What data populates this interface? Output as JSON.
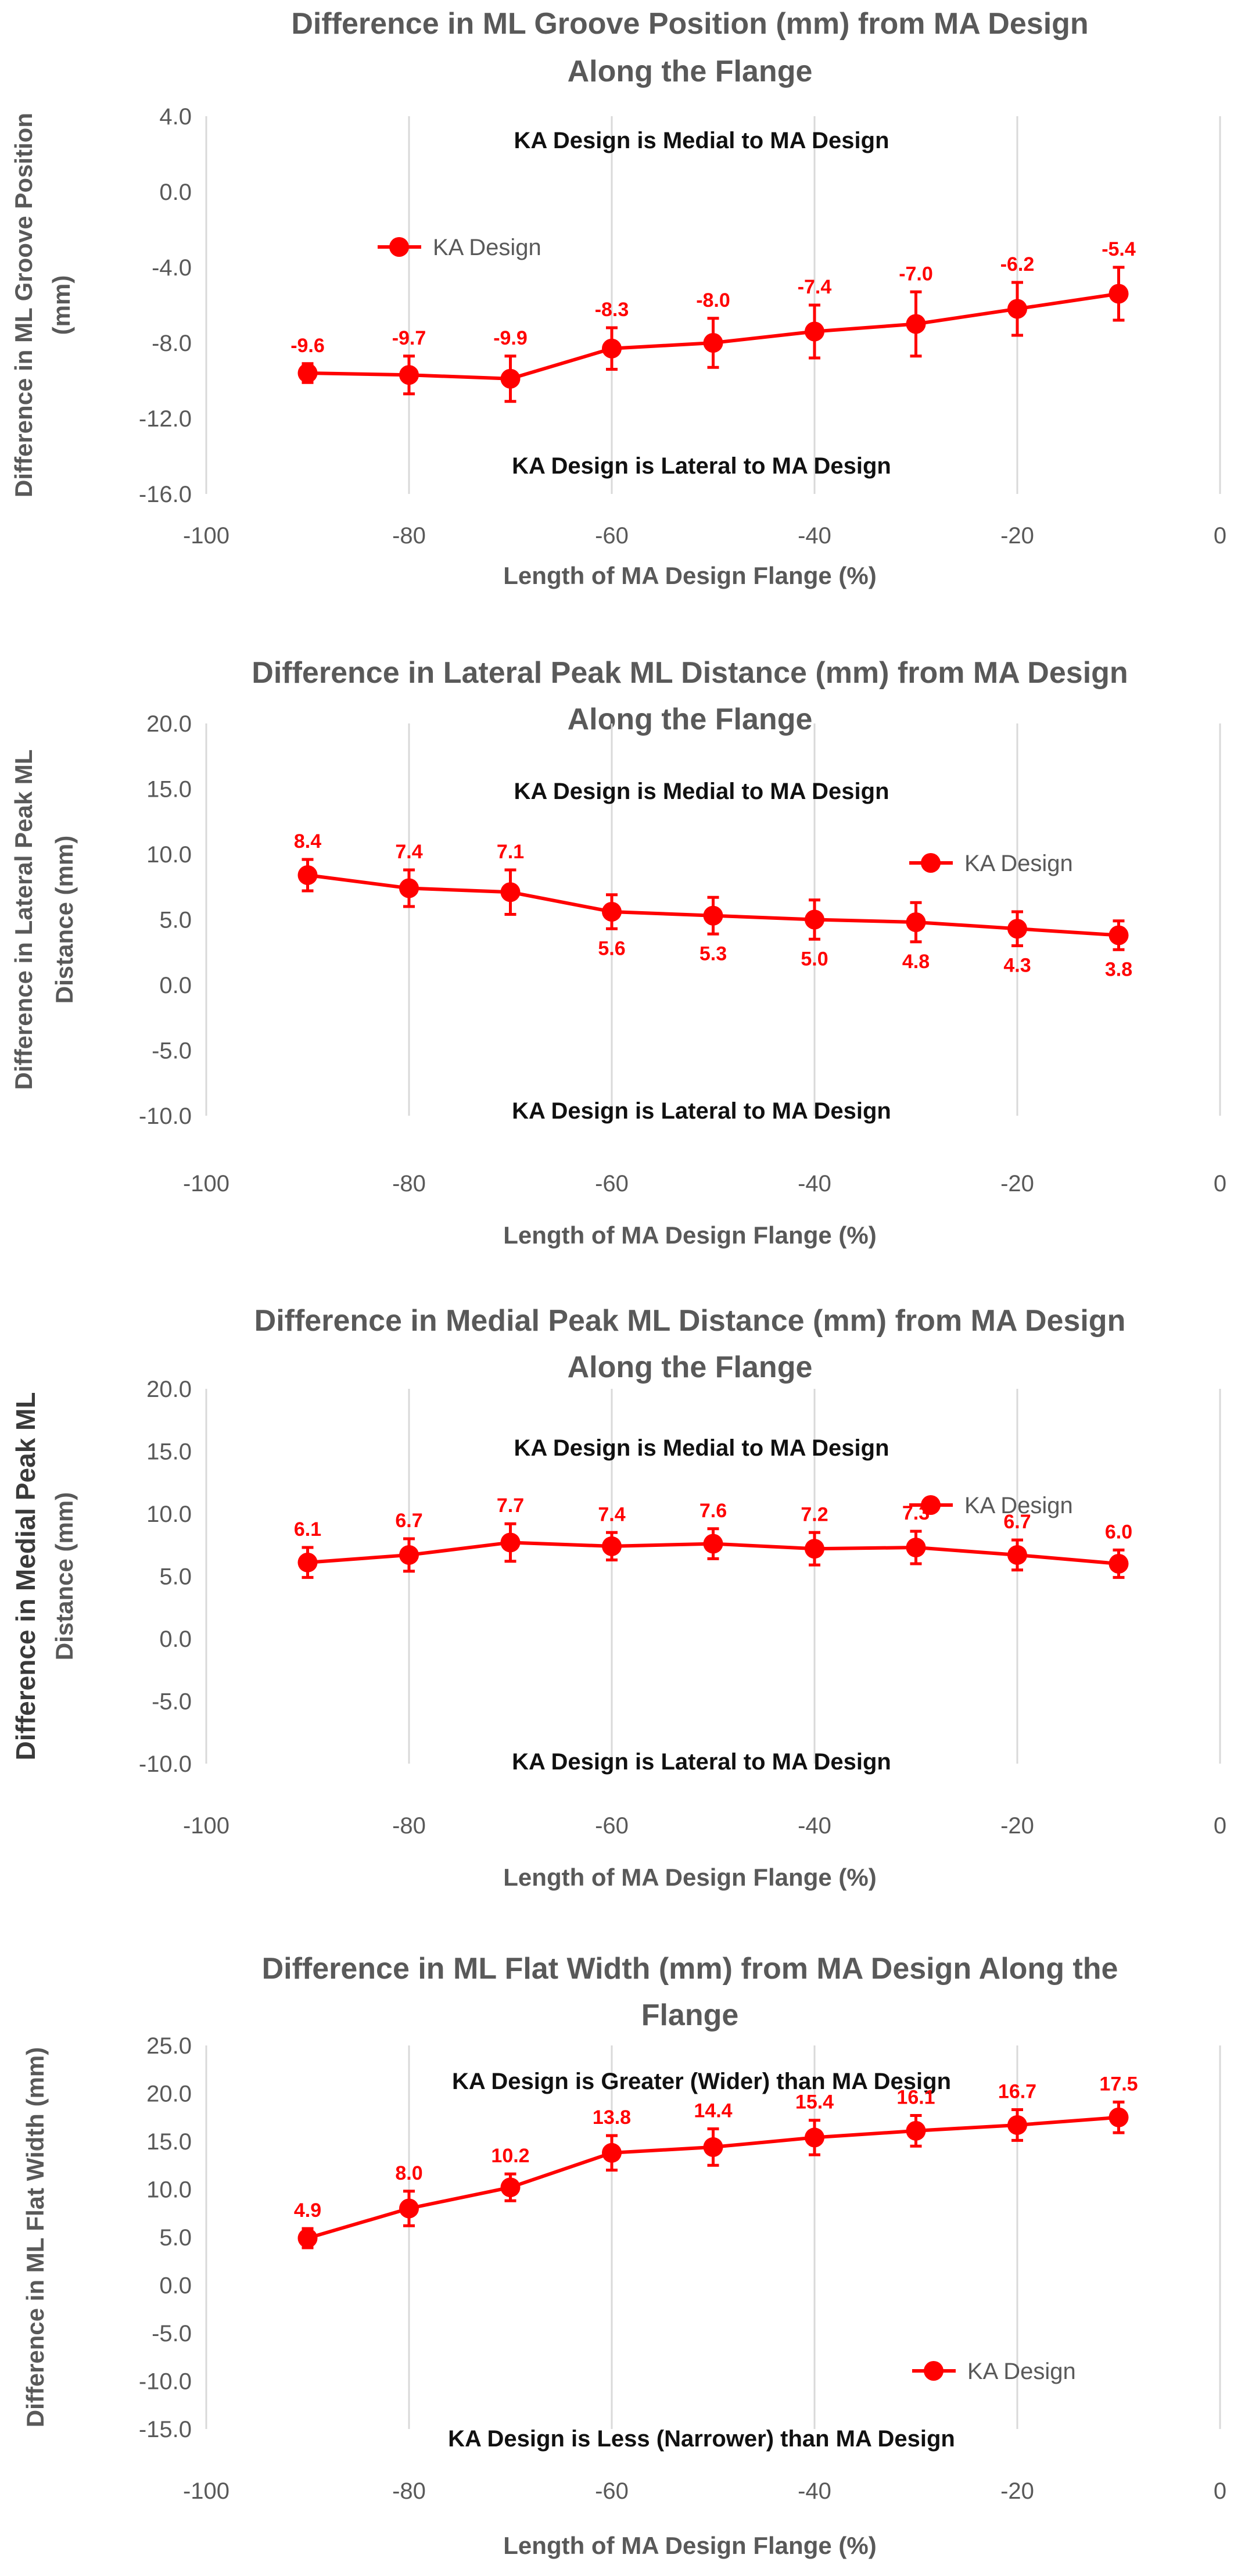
{
  "chart_data": [
    {
      "type": "line",
      "title": [
        "Difference in ML Groove Position (mm) from MA Design",
        "Along the Flange"
      ],
      "xlabel": "Length of MA Design Flange (%)",
      "ylabel": [
        "Difference in ML Groove Position",
        "(mm)"
      ],
      "xlim": [
        -100,
        0
      ],
      "ylim": [
        -16,
        4
      ],
      "x_ticks": [
        "-100",
        "-80",
        "-60",
        "-40",
        "-20",
        "0"
      ],
      "y_ticks": [
        "4.0",
        "0.0",
        "-4.0",
        "-8.0",
        "-12.0",
        "-16.0"
      ],
      "y_tick_values": [
        4,
        0,
        -4,
        -8,
        -12,
        -16
      ],
      "grid": "vertical",
      "legend_position": "upper-left",
      "annotations": {
        "top": "KA Design is Medial to MA Design",
        "bottom": "KA Design is Lateral to MA Design"
      },
      "series": [
        {
          "name": "KA Design",
          "color": "#ff0000",
          "x": [
            -90,
            -80,
            -70,
            -60,
            -50,
            -40,
            -30,
            -20,
            -10
          ],
          "y": [
            -9.6,
            -9.7,
            -9.9,
            -8.3,
            -8.0,
            -7.4,
            -7.0,
            -6.2,
            -5.4
          ],
          "error": [
            0.5,
            1.0,
            1.2,
            1.1,
            1.3,
            1.4,
            1.7,
            1.4,
            1.4
          ],
          "labels": [
            "-9.6",
            "-9.7",
            "-9.9",
            "-8.3",
            "-8.0",
            "-7.4",
            "-7.0",
            "-6.2",
            "-5.4"
          ],
          "label_placement": "above"
        }
      ]
    },
    {
      "type": "line",
      "title": [
        "Difference in Lateral Peak ML Distance (mm) from MA Design",
        "Along the Flange"
      ],
      "xlabel": "Length of MA Design Flange (%)",
      "ylabel": [
        "Difference in Lateral Peak ML",
        "Distance (mm)"
      ],
      "xlim": [
        -100,
        0
      ],
      "ylim": [
        -10,
        20
      ],
      "x_ticks": [
        "-100",
        "-80",
        "-60",
        "-40",
        "-20",
        "0"
      ],
      "y_ticks": [
        "20.0",
        "15.0",
        "10.0",
        "5.0",
        "0.0",
        "-5.0",
        "-10.0"
      ],
      "y_tick_values": [
        20,
        15,
        10,
        5,
        0,
        -5,
        -10
      ],
      "grid": "vertical",
      "legend_position": "upper-right",
      "annotations": {
        "top": "KA Design is Medial to MA Design",
        "bottom": "KA Design is Lateral to MA Design"
      },
      "series": [
        {
          "name": "KA Design",
          "color": "#ff0000",
          "x": [
            -90,
            -80,
            -70,
            -60,
            -50,
            -40,
            -30,
            -20,
            -10
          ],
          "y": [
            8.4,
            7.4,
            7.1,
            5.6,
            5.3,
            5.0,
            4.8,
            4.3,
            3.8
          ],
          "error": [
            1.2,
            1.4,
            1.7,
            1.3,
            1.4,
            1.5,
            1.5,
            1.3,
            1.1
          ],
          "labels": [
            "8.4",
            "7.4",
            "7.1",
            "5.6",
            "5.3",
            "5.0",
            "4.8",
            "4.3",
            "3.8"
          ],
          "label_placement": [
            "above",
            "above",
            "above",
            "below",
            "below",
            "below",
            "below",
            "below",
            "below"
          ]
        }
      ]
    },
    {
      "type": "line",
      "title": [
        "Difference in Medial Peak ML Distance (mm) from MA Design",
        "Along the Flange"
      ],
      "xlabel": "Length of MA Design Flange (%)",
      "ylabel": [
        "Difference in Medial Peak ML",
        "Distance (mm)"
      ],
      "xlim": [
        -100,
        0
      ],
      "ylim": [
        -10,
        20
      ],
      "x_ticks": [
        "-100",
        "-80",
        "-60",
        "-40",
        "-20",
        "0"
      ],
      "y_ticks": [
        "20.0",
        "15.0",
        "10.0",
        "5.0",
        "0.0",
        "-5.0",
        "-10.0"
      ],
      "y_tick_values": [
        20,
        15,
        10,
        5,
        0,
        -5,
        -10
      ],
      "grid": "vertical",
      "legend_position": "upper-right",
      "annotations": {
        "top": "KA Design is Medial to MA Design",
        "bottom": "KA Design is Lateral to MA Design"
      },
      "series": [
        {
          "name": "KA Design",
          "color": "#ff0000",
          "x": [
            -90,
            -80,
            -70,
            -60,
            -50,
            -40,
            -30,
            -20,
            -10
          ],
          "y": [
            6.1,
            6.7,
            7.7,
            7.4,
            7.6,
            7.2,
            7.3,
            6.7,
            6.0
          ],
          "error": [
            1.2,
            1.3,
            1.5,
            1.1,
            1.2,
            1.3,
            1.3,
            1.2,
            1.1
          ],
          "labels": [
            "6.1",
            "6.7",
            "7.7",
            "7.4",
            "7.6",
            "7.2",
            "7.3",
            "6.7",
            "6.0"
          ],
          "label_placement": "above"
        }
      ]
    },
    {
      "type": "line",
      "title": [
        "Difference in ML Flat Width (mm) from MA Design Along the",
        "Flange"
      ],
      "xlabel": "Length of MA Design Flange (%)",
      "ylabel": [
        "Difference in ML Flat Width (mm)"
      ],
      "xlim": [
        -100,
        0
      ],
      "ylim": [
        -15,
        25
      ],
      "x_ticks": [
        "-100",
        "-80",
        "-60",
        "-40",
        "-20",
        "0"
      ],
      "y_ticks": [
        "25.0",
        "20.0",
        "15.0",
        "10.0",
        "5.0",
        "0.0",
        "-5.0",
        "-10.0",
        "-15.0"
      ],
      "y_tick_values": [
        25,
        20,
        15,
        10,
        5,
        0,
        -5,
        -10,
        -15
      ],
      "grid": "vertical",
      "legend_position": "lower-right",
      "annotations": {
        "top": "KA Design is Greater (Wider) than MA Design",
        "bottom": "KA Design is Less (Narrower) than MA Design"
      },
      "series": [
        {
          "name": "KA Design",
          "color": "#ff0000",
          "x": [
            -90,
            -80,
            -70,
            -60,
            -50,
            -40,
            -30,
            -20,
            -10
          ],
          "y": [
            4.9,
            8.0,
            10.2,
            13.8,
            14.4,
            15.4,
            16.1,
            16.7,
            17.5
          ],
          "error": [
            1.0,
            1.8,
            1.4,
            1.8,
            1.9,
            1.8,
            1.6,
            1.6,
            1.6
          ],
          "labels": [
            "4.9",
            "8.0",
            "10.2",
            "13.8",
            "14.4",
            "15.4",
            "16.1",
            "16.7",
            "17.5"
          ],
          "label_placement": "above"
        }
      ]
    }
  ]
}
